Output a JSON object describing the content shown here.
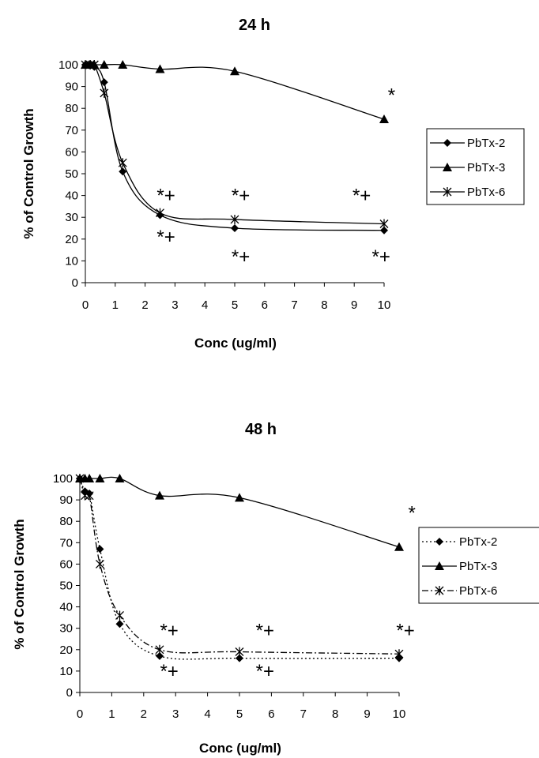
{
  "chart_data": [
    {
      "type": "line",
      "title": "24 h",
      "xlabel": "Conc (ug/ml)",
      "ylabel": "% of Control Growth",
      "xlim": [
        0,
        10
      ],
      "ylim": [
        0,
        100
      ],
      "xticks": [
        "0",
        "1",
        "2",
        "3",
        "4",
        "5",
        "6",
        "7",
        "8",
        "9",
        "10"
      ],
      "yticks": [
        "0",
        "10",
        "20",
        "30",
        "40",
        "50",
        "60",
        "70",
        "80",
        "90",
        "100"
      ],
      "grid": false,
      "legend": "right",
      "series": [
        {
          "name": "PbTx-2",
          "marker": "diamond",
          "line": "solid",
          "x": [
            0,
            0.16,
            0.3,
            0.63,
            1.25,
            2.5,
            5,
            10
          ],
          "y": [
            100,
            100,
            99,
            92,
            51,
            31,
            25,
            24
          ]
        },
        {
          "name": "PbTx-3",
          "marker": "triangle",
          "line": "solid",
          "x": [
            0,
            0.16,
            0.3,
            0.63,
            1.25,
            2.5,
            5,
            10
          ],
          "y": [
            100,
            100,
            100,
            100,
            100,
            98,
            97,
            75
          ]
        },
        {
          "name": "PbTx-6",
          "marker": "asterisk",
          "line": "solid",
          "x": [
            0,
            0.16,
            0.3,
            0.63,
            1.25,
            2.5,
            5,
            10
          ],
          "y": [
            100,
            100,
            100,
            87,
            55,
            32,
            29,
            27
          ]
        }
      ],
      "annotations": [
        {
          "text": "*",
          "x": 10.25,
          "y": 86
        },
        {
          "text": "*+",
          "x": 2.7,
          "y": 40
        },
        {
          "text": "*+",
          "x": 5.2,
          "y": 40
        },
        {
          "text": "*+",
          "x": 9.25,
          "y": 40
        },
        {
          "text": "*+",
          "x": 2.7,
          "y": 21
        },
        {
          "text": "*+",
          "x": 5.2,
          "y": 12
        },
        {
          "text": "*+",
          "x": 9.9,
          "y": 12
        }
      ]
    },
    {
      "type": "line",
      "title": "48 h",
      "xlabel": "Conc (ug/ml)",
      "ylabel": "% of Control Growth",
      "xlim": [
        0,
        10
      ],
      "ylim": [
        0,
        100
      ],
      "xticks": [
        "0",
        "1",
        "2",
        "3",
        "4",
        "5",
        "6",
        "7",
        "8",
        "9",
        "10"
      ],
      "yticks": [
        "0",
        "10",
        "20",
        "30",
        "40",
        "50",
        "60",
        "70",
        "80",
        "90",
        "100"
      ],
      "grid": false,
      "legend": "right",
      "series": [
        {
          "name": "PbTx-2",
          "marker": "diamond",
          "line": "dotted",
          "x": [
            0,
            0.16,
            0.3,
            0.63,
            1.25,
            2.5,
            5,
            10
          ],
          "y": [
            100,
            94,
            93,
            67,
            32,
            17,
            16,
            16
          ]
        },
        {
          "name": "PbTx-3",
          "marker": "triangle",
          "line": "solid",
          "x": [
            0,
            0.16,
            0.3,
            0.63,
            1.25,
            2.5,
            5,
            10
          ],
          "y": [
            100,
            100,
            100,
            100,
            100,
            92,
            91,
            68
          ]
        },
        {
          "name": "PbTx-6",
          "marker": "asterisk",
          "line": "dash-dot",
          "x": [
            0,
            0.16,
            0.3,
            0.63,
            1.25,
            2.5,
            5,
            10
          ],
          "y": [
            100,
            92,
            92,
            60,
            36,
            20,
            19,
            18
          ]
        }
      ],
      "annotations": [
        {
          "text": "*",
          "x": 10.4,
          "y": 84
        },
        {
          "text": "*+",
          "x": 2.8,
          "y": 29
        },
        {
          "text": "*+",
          "x": 5.8,
          "y": 29
        },
        {
          "text": "*+",
          "x": 10.2,
          "y": 29
        },
        {
          "text": "*+",
          "x": 2.8,
          "y": 10
        },
        {
          "text": "*+",
          "x": 5.8,
          "y": 10
        }
      ]
    }
  ]
}
